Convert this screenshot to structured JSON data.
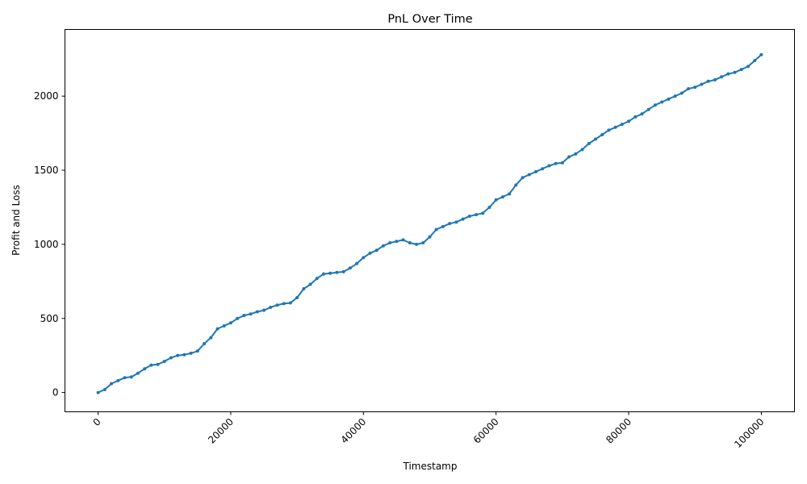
{
  "chart_data": {
    "type": "line",
    "title": "PnL Over Time",
    "xlabel": "Timestamp",
    "ylabel": "Profit and Loss",
    "xlim": [
      -5000,
      105000
    ],
    "ylim": [
      -130,
      2450
    ],
    "xticks": [
      0,
      20000,
      40000,
      60000,
      80000,
      100000
    ],
    "xtick_labels": [
      "0",
      "20000",
      "40000",
      "60000",
      "80000",
      "100000"
    ],
    "yticks": [
      0,
      500,
      1000,
      1500,
      2000
    ],
    "ytick_labels": [
      "0",
      "500",
      "1000",
      "1500",
      "2000"
    ],
    "grid": false,
    "legend": "none",
    "series": [
      {
        "color": "#1f77b4",
        "marker": "circle",
        "x": [
          0,
          1000,
          2000,
          3000,
          4000,
          5000,
          6000,
          7000,
          8000,
          9000,
          10000,
          11000,
          12000,
          13000,
          14000,
          15000,
          16000,
          17000,
          18000,
          19000,
          20000,
          21000,
          22000,
          23000,
          24000,
          25000,
          26000,
          27000,
          28000,
          29000,
          30000,
          31000,
          32000,
          33000,
          34000,
          35000,
          36000,
          37000,
          38000,
          39000,
          40000,
          41000,
          42000,
          43000,
          44000,
          45000,
          46000,
          47000,
          48000,
          49000,
          50000,
          51000,
          52000,
          53000,
          54000,
          55000,
          56000,
          57000,
          58000,
          59000,
          60000,
          61000,
          62000,
          63000,
          64000,
          65000,
          66000,
          67000,
          68000,
          69000,
          70000,
          71000,
          72000,
          73000,
          74000,
          75000,
          76000,
          77000,
          78000,
          79000,
          80000,
          81000,
          82000,
          83000,
          84000,
          85000,
          86000,
          87000,
          88000,
          89000,
          90000,
          91000,
          92000,
          93000,
          94000,
          95000,
          96000,
          97000,
          98000,
          99000,
          100000
        ],
        "y": [
          0,
          20,
          60,
          80,
          100,
          105,
          130,
          160,
          185,
          190,
          210,
          235,
          250,
          255,
          265,
          280,
          330,
          370,
          430,
          450,
          470,
          500,
          520,
          530,
          545,
          555,
          575,
          590,
          600,
          605,
          640,
          700,
          730,
          770,
          800,
          805,
          810,
          815,
          840,
          870,
          910,
          940,
          960,
          990,
          1010,
          1020,
          1030,
          1010,
          1000,
          1010,
          1050,
          1100,
          1120,
          1140,
          1150,
          1170,
          1190,
          1200,
          1210,
          1250,
          1300,
          1320,
          1340,
          1400,
          1450,
          1470,
          1490,
          1510,
          1530,
          1545,
          1550,
          1590,
          1610,
          1640,
          1680,
          1710,
          1740,
          1770,
          1790,
          1810,
          1830,
          1860,
          1880,
          1910,
          1940,
          1960,
          1980,
          2000,
          2020,
          2050,
          2060,
          2080,
          2100,
          2110,
          2130,
          2150,
          2160,
          2180,
          2200,
          2240,
          2280
        ]
      }
    ]
  }
}
